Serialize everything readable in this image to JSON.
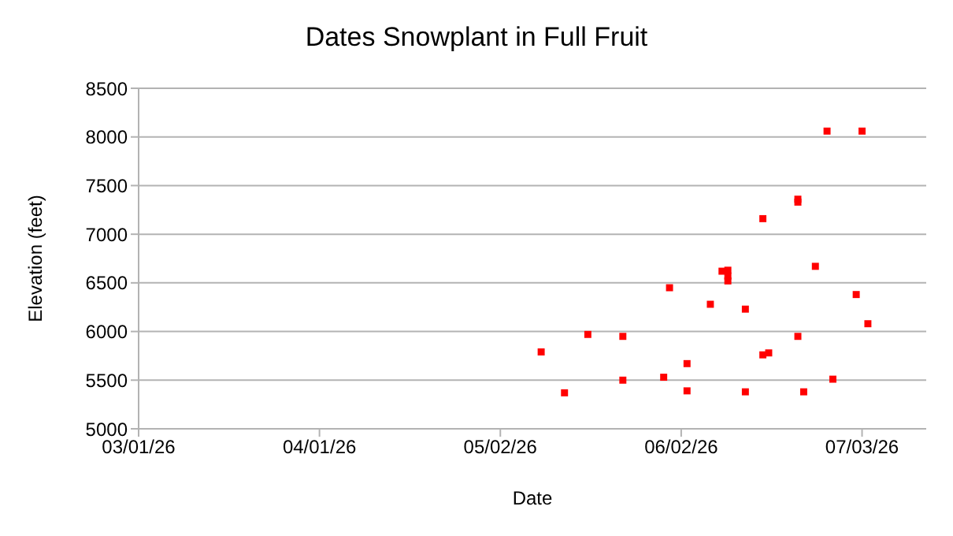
{
  "chart_data": {
    "type": "scatter",
    "title": "Dates Snowplant in Full Fruit",
    "xlabel": "Date",
    "ylabel": "Elevation (feet)",
    "x": [
      "2026-05-09",
      "2026-05-13",
      "2026-05-17",
      "2026-05-23",
      "2026-05-23",
      "2026-05-30",
      "2026-05-31",
      "2026-06-03",
      "2026-06-03",
      "2026-06-07",
      "2026-06-09",
      "2026-06-10",
      "2026-06-10",
      "2026-06-10",
      "2026-06-13",
      "2026-06-13",
      "2026-06-16",
      "2026-06-16",
      "2026-06-17",
      "2026-06-22",
      "2026-06-22",
      "2026-06-22",
      "2026-06-23",
      "2026-06-25",
      "2026-06-27",
      "2026-06-28",
      "2026-07-02",
      "2026-07-03",
      "2026-07-04"
    ],
    "values": [
      5790,
      5370,
      5970,
      5950,
      5500,
      5530,
      6450,
      5670,
      5390,
      6280,
      6620,
      6630,
      6570,
      6520,
      6230,
      5380,
      7160,
      5760,
      5780,
      7360,
      7330,
      5950,
      5380,
      6670,
      8060,
      5510,
      6380,
      8060,
      6080
    ],
    "color": "#ff0000",
    "marker": "square",
    "grid": "y",
    "legend": false,
    "xlim": [
      "2026-03-01",
      "2026-07-14"
    ],
    "xticks": [
      {
        "value": "2026-03-01",
        "label": "03/01/26"
      },
      {
        "value": "2026-04-01",
        "label": "04/01/26"
      },
      {
        "value": "2026-05-02",
        "label": "05/02/26"
      },
      {
        "value": "2026-06-02",
        "label": "06/02/26"
      },
      {
        "value": "2026-07-03",
        "label": "07/03/26"
      }
    ],
    "ylim": [
      5000,
      8500
    ],
    "yticks": [
      5000,
      5500,
      6000,
      6500,
      7000,
      7500,
      8000,
      8500
    ]
  }
}
